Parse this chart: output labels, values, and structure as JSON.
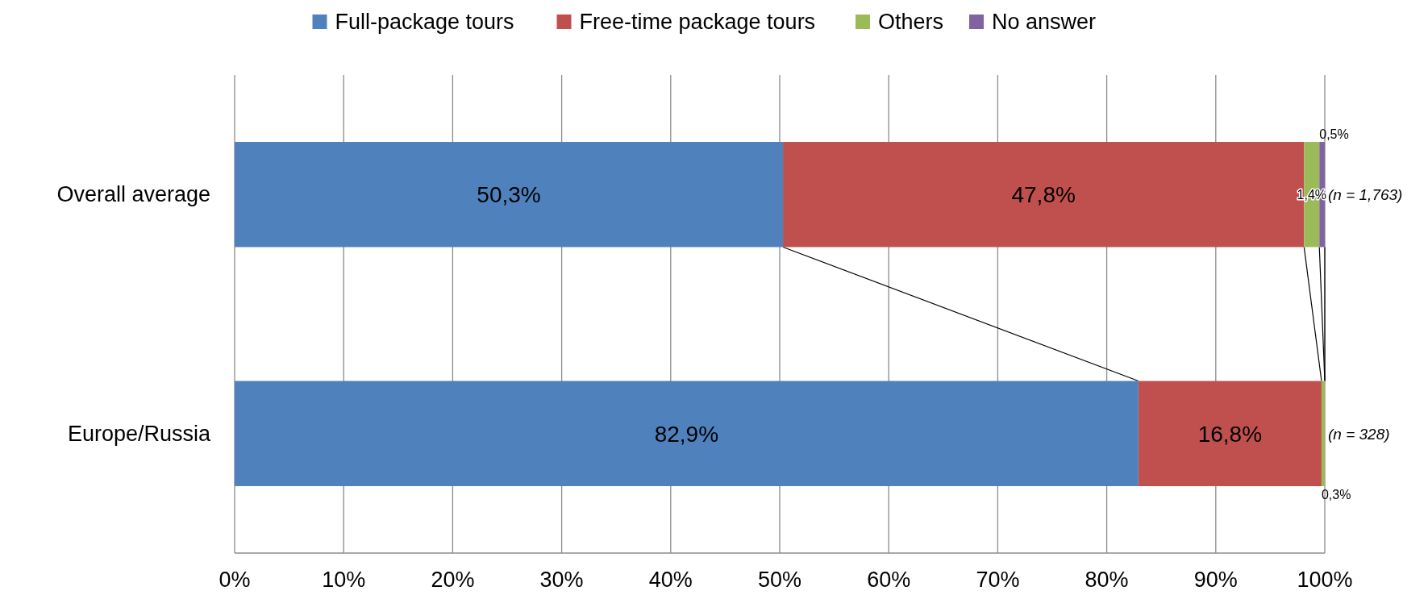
{
  "chart_data": {
    "type": "bar",
    "orientation": "horizontal",
    "stacked": true,
    "categories": [
      "Overall average",
      "Europe/Russia"
    ],
    "series": [
      {
        "name": "Full-package tours",
        "color": "#4f81bd",
        "values": [
          50.3,
          82.9
        ],
        "value_labels": [
          "50,3%",
          "82,9%"
        ]
      },
      {
        "name": "Free-time package tours",
        "color": "#c0504d",
        "values": [
          47.8,
          16.8
        ],
        "value_labels": [
          "47,8%",
          "16,8%"
        ]
      },
      {
        "name": "Others",
        "color": "#9bbb59",
        "values": [
          1.4,
          0.3
        ],
        "value_labels": [
          "1,4%",
          "0,3%"
        ]
      },
      {
        "name": "No answer",
        "color": "#8064a2",
        "values": [
          0.5,
          null
        ],
        "value_labels": [
          "0,5%",
          null
        ]
      }
    ],
    "xlim": [
      0,
      100
    ],
    "xticks": [
      {
        "value": 0,
        "label": "0%"
      },
      {
        "value": 10,
        "label": "10%"
      },
      {
        "value": 20,
        "label": "20%"
      },
      {
        "value": 30,
        "label": "30%"
      },
      {
        "value": 40,
        "label": "40%"
      },
      {
        "value": 50,
        "label": "50%"
      },
      {
        "value": 60,
        "label": "60%"
      },
      {
        "value": 70,
        "label": "70%"
      },
      {
        "value": 80,
        "label": "80%"
      },
      {
        "value": 90,
        "label": "90%"
      },
      {
        "value": 100,
        "label": "100%"
      }
    ],
    "annotations": [
      "(n = 1,763)",
      "(n = 328)"
    ],
    "grid": "x",
    "legend": "top"
  }
}
